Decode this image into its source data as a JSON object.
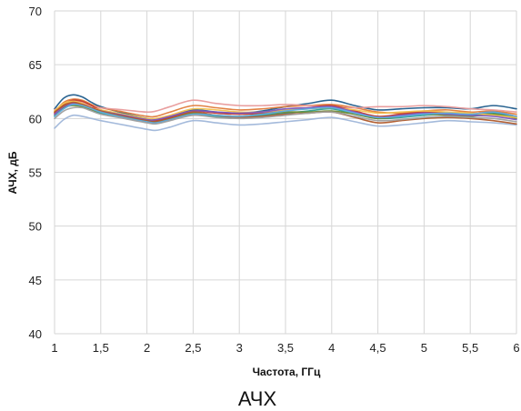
{
  "chart_data": {
    "type": "line",
    "title": "",
    "caption": "АЧХ",
    "xlabel": "Частота, ГГц",
    "ylabel": "АЧХ, дБ",
    "xlim": [
      1,
      6
    ],
    "ylim": [
      40,
      70
    ],
    "grid": true,
    "legend": "none",
    "x_ticks": [
      {
        "value": 1,
        "label": "1"
      },
      {
        "value": 1.5,
        "label": "1,5"
      },
      {
        "value": 2,
        "label": "2"
      },
      {
        "value": 2.5,
        "label": "2,5"
      },
      {
        "value": 3,
        "label": "3"
      },
      {
        "value": 3.5,
        "label": "3,5"
      },
      {
        "value": 4,
        "label": "4"
      },
      {
        "value": 4.5,
        "label": "4,5"
      },
      {
        "value": 5,
        "label": "5"
      },
      {
        "value": 5.5,
        "label": "5,5"
      },
      {
        "value": 6,
        "label": "6"
      }
    ],
    "y_ticks": [
      {
        "value": 40,
        "label": "40"
      },
      {
        "value": 45,
        "label": "45"
      },
      {
        "value": 50,
        "label": "50"
      },
      {
        "value": 55,
        "label": "55"
      },
      {
        "value": 60,
        "label": "60"
      },
      {
        "value": 65,
        "label": "65"
      },
      {
        "value": 70,
        "label": "70"
      }
    ],
    "x": [
      1.0,
      1.1,
      1.2,
      1.3,
      1.4,
      1.5,
      1.75,
      2.0,
      2.1,
      2.25,
      2.5,
      2.75,
      3.0,
      3.25,
      3.5,
      3.75,
      4.0,
      4.25,
      4.5,
      4.75,
      5.0,
      5.25,
      5.5,
      5.75,
      6.0
    ],
    "series": [
      {
        "color": "#1f5c8b",
        "values": [
          60.9,
          61.9,
          62.2,
          62.0,
          61.5,
          61.1,
          60.5,
          60.0,
          59.9,
          60.2,
          60.8,
          60.6,
          60.5,
          60.7,
          61.1,
          61.4,
          61.7,
          61.2,
          60.8,
          60.9,
          61.0,
          61.0,
          60.9,
          61.2,
          60.9
        ]
      },
      {
        "color": "#e07b39",
        "values": [
          60.6,
          61.5,
          61.8,
          61.7,
          61.3,
          61.0,
          60.6,
          60.2,
          60.2,
          60.6,
          61.2,
          61.0,
          60.8,
          60.9,
          61.1,
          61.2,
          61.3,
          61.0,
          60.6,
          60.5,
          60.7,
          60.8,
          60.6,
          60.7,
          60.4
        ]
      },
      {
        "color": "#e89a9a",
        "values": [
          60.8,
          61.3,
          61.6,
          61.5,
          61.2,
          61.0,
          60.8,
          60.6,
          60.7,
          61.1,
          61.7,
          61.4,
          61.2,
          61.2,
          61.3,
          61.2,
          61.1,
          61.0,
          61.1,
          61.1,
          61.2,
          61.1,
          60.9,
          60.8,
          60.6
        ]
      },
      {
        "color": "#2a9d8f",
        "values": [
          60.2,
          61.0,
          61.3,
          61.1,
          60.8,
          60.5,
          60.1,
          59.7,
          59.6,
          59.9,
          60.4,
          60.2,
          60.1,
          60.3,
          60.5,
          60.7,
          60.9,
          60.4,
          60.0,
          60.1,
          60.3,
          60.4,
          60.3,
          60.5,
          60.1
        ]
      },
      {
        "color": "#9fb6d9",
        "values": [
          59.1,
          59.9,
          60.3,
          60.2,
          60.0,
          59.8,
          59.4,
          59.0,
          58.9,
          59.2,
          59.8,
          59.6,
          59.4,
          59.5,
          59.7,
          59.9,
          60.1,
          59.7,
          59.3,
          59.4,
          59.6,
          59.8,
          59.7,
          59.6,
          59.4
        ]
      },
      {
        "color": "#c0392b",
        "values": [
          60.5,
          61.3,
          61.7,
          61.6,
          61.2,
          60.8,
          60.3,
          59.9,
          59.8,
          60.1,
          60.7,
          60.5,
          60.4,
          60.5,
          60.8,
          61.0,
          61.2,
          60.7,
          60.2,
          60.4,
          60.6,
          60.5,
          60.4,
          60.6,
          60.2
        ]
      },
      {
        "color": "#6d8b2e",
        "values": [
          60.3,
          61.0,
          61.2,
          61.1,
          60.8,
          60.6,
          60.2,
          59.8,
          59.7,
          60.0,
          60.5,
          60.3,
          60.2,
          60.4,
          60.6,
          60.6,
          60.7,
          60.4,
          60.0,
          60.2,
          60.4,
          60.3,
          60.2,
          60.4,
          60.0
        ]
      },
      {
        "color": "#f2c14e",
        "values": [
          60.7,
          61.4,
          61.6,
          61.4,
          61.0,
          60.8,
          60.4,
          60.0,
          60.0,
          60.3,
          60.9,
          60.8,
          60.6,
          60.6,
          60.8,
          60.9,
          61.0,
          60.8,
          60.5,
          60.6,
          60.7,
          60.6,
          60.5,
          60.3,
          60.1
        ]
      },
      {
        "color": "#7e57c2",
        "values": [
          60.4,
          61.1,
          61.4,
          61.3,
          61.0,
          60.7,
          60.3,
          59.9,
          59.9,
          60.2,
          60.7,
          60.6,
          60.5,
          60.6,
          60.9,
          61.0,
          61.1,
          60.6,
          60.1,
          60.3,
          60.5,
          60.4,
          60.3,
          60.2,
          59.9
        ]
      },
      {
        "color": "#b05a2b",
        "values": [
          60.6,
          61.2,
          61.5,
          61.3,
          61.0,
          60.7,
          60.2,
          59.8,
          59.7,
          60.0,
          60.6,
          60.3,
          60.1,
          60.2,
          60.4,
          60.5,
          60.6,
          60.1,
          59.6,
          59.8,
          60.0,
          60.1,
          60.0,
          59.8,
          59.5
        ]
      },
      {
        "color": "#5dade2",
        "values": [
          60.2,
          60.9,
          61.3,
          61.2,
          60.9,
          60.6,
          60.1,
          59.7,
          59.6,
          59.9,
          60.4,
          60.3,
          60.2,
          60.4,
          60.7,
          60.9,
          61.0,
          60.5,
          60.1,
          60.2,
          60.4,
          60.5,
          60.4,
          60.6,
          60.2
        ]
      },
      {
        "color": "#9e9e9e",
        "values": [
          60.0,
          60.7,
          61.0,
          61.0,
          60.7,
          60.4,
          60.0,
          59.6,
          59.5,
          59.8,
          60.3,
          60.1,
          60.0,
          60.1,
          60.3,
          60.5,
          60.6,
          60.2,
          59.8,
          59.9,
          60.1,
          60.2,
          60.1,
          60.0,
          59.7
        ]
      }
    ]
  }
}
